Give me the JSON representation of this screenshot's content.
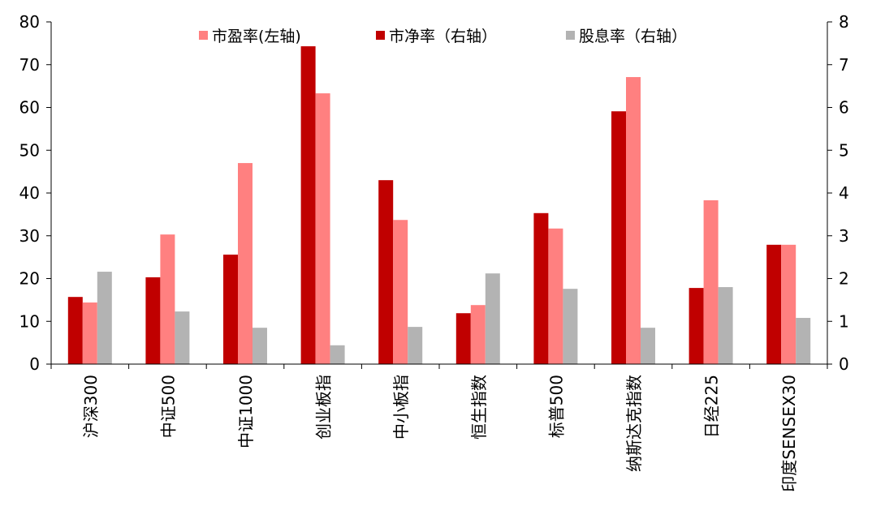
{
  "chart_data": {
    "type": "bar",
    "categories": [
      "沪深300",
      "中证500",
      "中证1000",
      "创业板指",
      "中小板指",
      "恒生指数",
      "标普500",
      "纳斯达克指数",
      "日经225",
      "印度SENSEX30"
    ],
    "series": [
      {
        "name": "市净率（右轴）",
        "axis": "right",
        "color": "#c00000",
        "values": [
          1.57,
          2.03,
          2.56,
          7.43,
          4.3,
          1.19,
          3.53,
          5.91,
          1.78,
          2.79
        ]
      },
      {
        "name": "市盈率(左轴)",
        "axis": "left",
        "color": "#ff8080",
        "values": [
          14.4,
          30.3,
          47.0,
          63.3,
          33.7,
          13.8,
          31.7,
          67.1,
          38.3,
          27.9
        ]
      },
      {
        "name": "股息率（右轴）",
        "axis": "right",
        "color": "#b3b3b3",
        "values": [
          2.16,
          1.23,
          0.85,
          0.44,
          0.87,
          2.12,
          1.76,
          0.85,
          1.8,
          1.08
        ]
      }
    ],
    "legend_order": [
      "市盈率(左轴)",
      "市净率（右轴）",
      "股息率（右轴）"
    ],
    "ylim_left": [
      0,
      80
    ],
    "yticks_left": [
      "0",
      "10",
      "20",
      "30",
      "40",
      "50",
      "60",
      "70",
      "80"
    ],
    "ylim_right": [
      0,
      8
    ],
    "yticks_right": [
      "0",
      "1",
      "2",
      "3",
      "4",
      "5",
      "6",
      "7",
      "8"
    ],
    "grid": false,
    "legend_position": "top"
  }
}
